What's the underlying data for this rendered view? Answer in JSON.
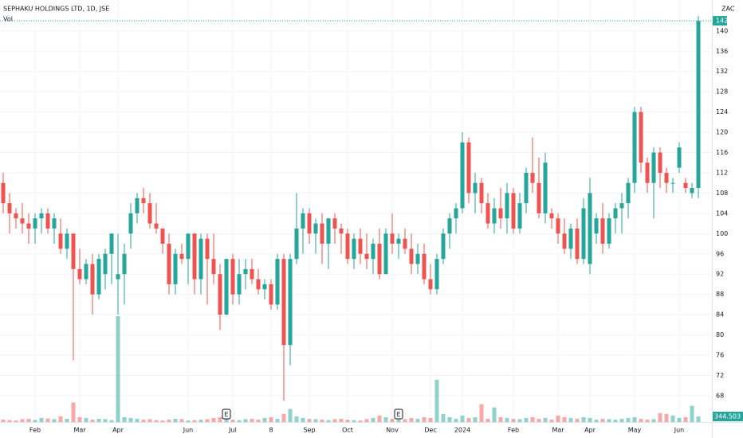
{
  "chart_data": {
    "type": "candlestick",
    "title": "SEPHAKU HOLDINGS LTD, 1D, JSE",
    "currency": "ZAC",
    "up_color": "#26a69a",
    "down_color": "#ef5350",
    "ylim": [
      62.8,
      146.1
    ],
    "yticks": [
      68,
      72,
      76,
      80,
      84,
      88,
      92,
      96,
      100,
      104,
      108,
      112,
      116,
      120,
      124,
      128,
      132,
      136,
      140
    ],
    "grid": true,
    "categories": [
      null,
      null,
      null,
      null,
      null,
      "Feb",
      null,
      null,
      null,
      null,
      null,
      null,
      "Mar",
      null,
      null,
      null,
      null,
      null,
      "Apr",
      null,
      null,
      null,
      null,
      null,
      null,
      null,
      null,
      null,
      null,
      "Jun",
      null,
      null,
      null,
      null,
      null,
      null,
      "Jul",
      null,
      null,
      null,
      null,
      null,
      "8",
      null,
      null,
      null,
      null,
      null,
      "Sep",
      null,
      null,
      null,
      null,
      null,
      "Oct",
      null,
      null,
      null,
      null,
      null,
      null,
      "Nov",
      null,
      null,
      null,
      null,
      null,
      "Dec",
      null,
      null,
      null,
      null,
      "2024",
      null,
      null,
      null,
      null,
      null,
      null,
      null,
      "Feb",
      null,
      null,
      null,
      null,
      null,
      null,
      "Mar",
      null,
      null,
      null,
      null,
      "Apr",
      null,
      null,
      null,
      null,
      null,
      null,
      "May",
      null,
      null,
      null,
      null,
      null,
      null,
      "Jun",
      null,
      null,
      null
    ],
    "events": [
      null,
      null,
      null,
      null,
      null,
      null,
      null,
      null,
      null,
      null,
      null,
      null,
      null,
      null,
      null,
      null,
      null,
      null,
      null,
      null,
      null,
      null,
      null,
      null,
      null,
      null,
      null,
      null,
      null,
      null,
      null,
      null,
      null,
      null,
      null,
      "E",
      null,
      null,
      null,
      null,
      null,
      null,
      null,
      null,
      null,
      null,
      null,
      null,
      null,
      null,
      null,
      null,
      null,
      null,
      null,
      null,
      null,
      null,
      null,
      null,
      null,
      null,
      "E",
      null,
      null,
      null,
      null,
      null,
      null,
      null,
      null,
      null,
      null,
      null,
      null,
      null,
      null,
      null,
      null,
      null,
      null,
      null,
      null,
      null,
      null,
      null,
      null,
      null,
      null,
      null,
      null,
      null,
      null,
      null,
      null,
      null,
      null,
      null,
      null,
      null,
      null,
      null,
      null,
      null,
      null,
      null,
      null,
      null,
      null,
      null
    ],
    "ohlc": [
      [
        110,
        112,
        104,
        106
      ],
      [
        106,
        108,
        100,
        104
      ],
      [
        104,
        105,
        101,
        103
      ],
      [
        103,
        106,
        100,
        102
      ],
      [
        102,
        104,
        98,
        101
      ],
      [
        101,
        104,
        98,
        103
      ],
      [
        103,
        105,
        100,
        104
      ],
      [
        104,
        105,
        100,
        101
      ],
      [
        101,
        104,
        98,
        103
      ],
      [
        100,
        103,
        96,
        97
      ],
      [
        97,
        101,
        95,
        100
      ],
      [
        100,
        100,
        75,
        93
      ],
      [
        93,
        97,
        90,
        91
      ],
      [
        91,
        95,
        90,
        94
      ],
      [
        94,
        96,
        84,
        88
      ],
      [
        88,
        96,
        87,
        95
      ],
      [
        92,
        97,
        89,
        96
      ],
      [
        96,
        100,
        90,
        100
      ],
      [
        91,
        100,
        84,
        92
      ],
      [
        92,
        98,
        86,
        96
      ],
      [
        100,
        106,
        97,
        104
      ],
      [
        104,
        108,
        102,
        107
      ],
      [
        107,
        109,
        104,
        106
      ],
      [
        106,
        108,
        101,
        102
      ],
      [
        102,
        106,
        100,
        101
      ],
      [
        101,
        101,
        96,
        98
      ],
      [
        98,
        100,
        88,
        90
      ],
      [
        90,
        97,
        88,
        96
      ],
      [
        96,
        98,
        94,
        95
      ],
      [
        95,
        100,
        90,
        100
      ],
      [
        100,
        100,
        88,
        91
      ],
      [
        91,
        100,
        88,
        99
      ],
      [
        99,
        100,
        86,
        95
      ],
      [
        95,
        100,
        90,
        92
      ],
      [
        92,
        94,
        81,
        84
      ],
      [
        84,
        95,
        84,
        95
      ],
      [
        95,
        96,
        86,
        88
      ],
      [
        88,
        95,
        86,
        92
      ],
      [
        92,
        95,
        89,
        93
      ],
      [
        93,
        95,
        90,
        91
      ],
      [
        91,
        93,
        88,
        89
      ],
      [
        89,
        91,
        87,
        90
      ],
      [
        90,
        91,
        85,
        86
      ],
      [
        86,
        96,
        85,
        95
      ],
      [
        95,
        96,
        67,
        78
      ],
      [
        78,
        96,
        74,
        95
      ],
      [
        95,
        108,
        94,
        101
      ],
      [
        101,
        105,
        96,
        104
      ],
      [
        104,
        105,
        98,
        100
      ],
      [
        100,
        103,
        96,
        102
      ],
      [
        102,
        104,
        94,
        98
      ],
      [
        98,
        103,
        93,
        103
      ],
      [
        103,
        104,
        98,
        101
      ],
      [
        101,
        102,
        96,
        100
      ],
      [
        100,
        101,
        94,
        95
      ],
      [
        95,
        100,
        93,
        99
      ],
      [
        99,
        101,
        94,
        96
      ],
      [
        96,
        100,
        93,
        95
      ],
      [
        95,
        99,
        92,
        98
      ],
      [
        98,
        101,
        91,
        92
      ],
      [
        92,
        101,
        92,
        100
      ],
      [
        100,
        104,
        96,
        98
      ],
      [
        98,
        100,
        95,
        99
      ],
      [
        99,
        101,
        96,
        97
      ],
      [
        97,
        100,
        92,
        94
      ],
      [
        94,
        98,
        92,
        96
      ],
      [
        96,
        98,
        90,
        91
      ],
      [
        91,
        94,
        88,
        89
      ],
      [
        89,
        96,
        88,
        95
      ],
      [
        95,
        101,
        94,
        100
      ],
      [
        100,
        104,
        97,
        103
      ],
      [
        103,
        106,
        100,
        105
      ],
      [
        105,
        120,
        104,
        118
      ],
      [
        118,
        119,
        106,
        108
      ],
      [
        108,
        112,
        104,
        110
      ],
      [
        110,
        111,
        104,
        106
      ],
      [
        106,
        108,
        101,
        102
      ],
      [
        102,
        107,
        100,
        105
      ],
      [
        105,
        109,
        101,
        103
      ],
      [
        103,
        110,
        100,
        108
      ],
      [
        108,
        109,
        100,
        101
      ],
      [
        101,
        108,
        100,
        106
      ],
      [
        106,
        113,
        104,
        112
      ],
      [
        112,
        119,
        108,
        110
      ],
      [
        110,
        115,
        103,
        104
      ],
      [
        104,
        116,
        102,
        114
      ],
      [
        104,
        105,
        101,
        103
      ],
      [
        103,
        104,
        98,
        100
      ],
      [
        100,
        103,
        96,
        97
      ],
      [
        97,
        102,
        95,
        101
      ],
      [
        101,
        103,
        94,
        95
      ],
      [
        95,
        107,
        94,
        105
      ],
      [
        94,
        111,
        92,
        108
      ],
      [
        100,
        104,
        98,
        103
      ],
      [
        103,
        106,
        96,
        98
      ],
      [
        98,
        104,
        97,
        103
      ],
      [
        103,
        106,
        100,
        105
      ],
      [
        105,
        108,
        100,
        106
      ],
      [
        106,
        111,
        103,
        110
      ],
      [
        110,
        125,
        108,
        124
      ],
      [
        124,
        125,
        112,
        114
      ],
      [
        114,
        115,
        108,
        110
      ],
      [
        110,
        117,
        103,
        116
      ],
      [
        116,
        117,
        109,
        112
      ],
      [
        112,
        113,
        108,
        110
      ],
      [
        110,
        111,
        108,
        110
      ],
      [
        113,
        118,
        112,
        117
      ],
      [
        110,
        111,
        108,
        109
      ],
      [
        108,
        110,
        107,
        109
      ],
      [
        109,
        143,
        107,
        142
      ]
    ],
    "volume": {
      "name": "Vol",
      "last_label": "344.503 K",
      "values": [
        150000,
        120000,
        100000,
        180000,
        200000,
        130000,
        250000,
        220000,
        180000,
        350000,
        200000,
        1200000,
        300000,
        250000,
        150000,
        200000,
        180000,
        120000,
        6500000,
        300000,
        250000,
        200000,
        150000,
        180000,
        120000,
        100000,
        150000,
        200000,
        180000,
        100000,
        120000,
        150000,
        180000,
        250000,
        300000,
        200000,
        150000,
        120000,
        180000,
        200000,
        150000,
        250000,
        300000,
        200000,
        500000,
        800000,
        350000,
        250000,
        200000,
        180000,
        150000,
        120000,
        180000,
        200000,
        150000,
        120000,
        100000,
        180000,
        250000,
        400000,
        300000,
        200000,
        150000,
        180000,
        250000,
        200000,
        300000,
        250000,
        2600000,
        500000,
        300000,
        200000,
        400000,
        250000,
        300000,
        1100000,
        200000,
        900000,
        300000,
        250000,
        200000,
        180000,
        250000,
        300000,
        200000,
        250000,
        150000,
        400000,
        300000,
        250000,
        200000,
        300000,
        250000,
        150000,
        200000,
        180000,
        150000,
        200000,
        250000,
        300000,
        200000,
        150000,
        180000,
        550000,
        500000,
        400000,
        250000,
        300000,
        1000000,
        344503
      ]
    }
  }
}
